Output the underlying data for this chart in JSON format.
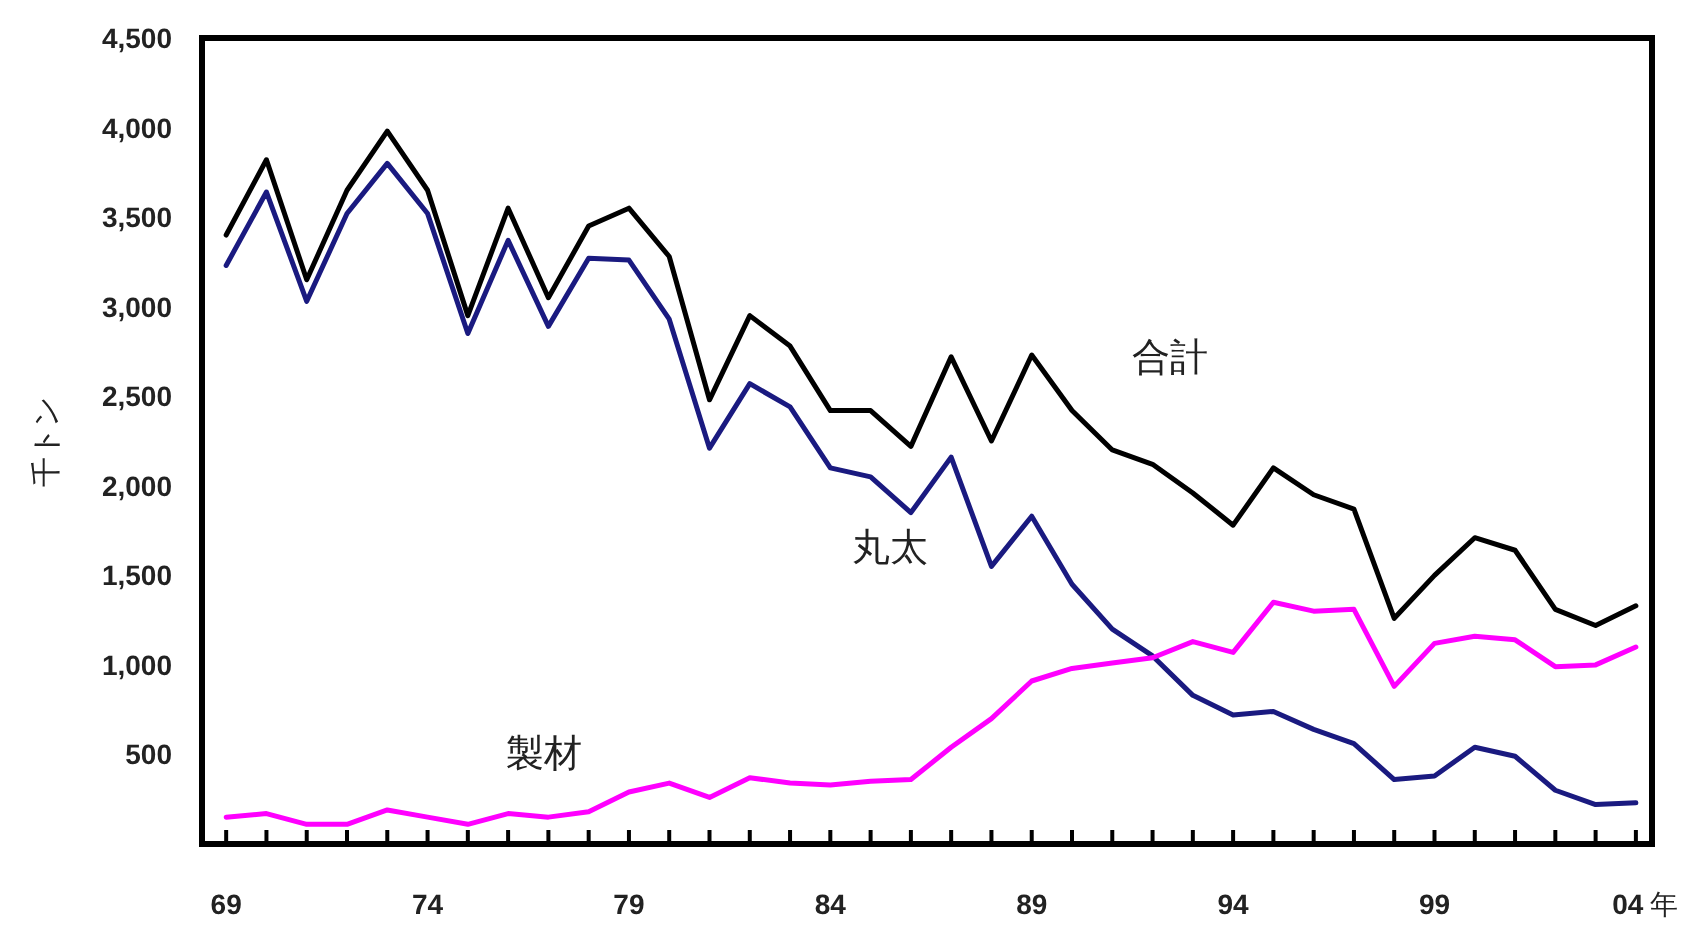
{
  "chart_data": {
    "type": "line",
    "ylabel": "千トン",
    "legend": false,
    "grid": false,
    "marker": "none",
    "line_style": "solid",
    "x": [
      1969,
      1970,
      1971,
      1972,
      1973,
      1974,
      1975,
      1976,
      1977,
      1978,
      1979,
      1980,
      1981,
      1982,
      1983,
      1984,
      1985,
      1986,
      1987,
      1988,
      1989,
      1990,
      1991,
      1992,
      1993,
      1994,
      1995,
      1996,
      1997,
      1998,
      1999,
      2000,
      2001,
      2002,
      2003,
      2004
    ],
    "xlim": [
      1968.4,
      2004.4
    ],
    "xticks": [
      {
        "value": 1969,
        "label": "69"
      },
      {
        "value": 1970,
        "label": null
      },
      {
        "value": 1971,
        "label": null
      },
      {
        "value": 1972,
        "label": null
      },
      {
        "value": 1973,
        "label": null
      },
      {
        "value": 1974,
        "label": "74"
      },
      {
        "value": 1975,
        "label": null
      },
      {
        "value": 1976,
        "label": null
      },
      {
        "value": 1977,
        "label": null
      },
      {
        "value": 1978,
        "label": null
      },
      {
        "value": 1979,
        "label": "79"
      },
      {
        "value": 1980,
        "label": null
      },
      {
        "value": 1981,
        "label": null
      },
      {
        "value": 1982,
        "label": null
      },
      {
        "value": 1983,
        "label": null
      },
      {
        "value": 1984,
        "label": "84"
      },
      {
        "value": 1985,
        "label": null
      },
      {
        "value": 1986,
        "label": null
      },
      {
        "value": 1987,
        "label": null
      },
      {
        "value": 1988,
        "label": null
      },
      {
        "value": 1989,
        "label": "89"
      },
      {
        "value": 1990,
        "label": null
      },
      {
        "value": 1991,
        "label": null
      },
      {
        "value": 1992,
        "label": null
      },
      {
        "value": 1993,
        "label": null
      },
      {
        "value": 1994,
        "label": "94"
      },
      {
        "value": 1995,
        "label": null
      },
      {
        "value": 1996,
        "label": null
      },
      {
        "value": 1997,
        "label": null
      },
      {
        "value": 1998,
        "label": null
      },
      {
        "value": 1999,
        "label": "99"
      },
      {
        "value": 2000,
        "label": null
      },
      {
        "value": 2001,
        "label": null
      },
      {
        "value": 2002,
        "label": null
      },
      {
        "value": 2003,
        "label": null
      },
      {
        "value": 2004,
        "label": "04"
      }
    ],
    "xlabel": "年",
    "ylim": [
      0,
      4500
    ],
    "yticks": [
      {
        "value": 500,
        "label": "500"
      },
      {
        "value": 1000,
        "label": "1,000"
      },
      {
        "value": 1500,
        "label": "1,500"
      },
      {
        "value": 2000,
        "label": "2,000"
      },
      {
        "value": 2500,
        "label": "2,500"
      },
      {
        "value": 3000,
        "label": "3,000"
      },
      {
        "value": 3500,
        "label": "3,500"
      },
      {
        "value": 4000,
        "label": "4,000"
      },
      {
        "value": 4500,
        "label": "4,500"
      }
    ],
    "series": [
      {
        "name": "合計",
        "color": "#000000",
        "values": [
          3400,
          3820,
          3150,
          3650,
          3980,
          3650,
          2950,
          3550,
          3050,
          3450,
          3550,
          3280,
          2480,
          2950,
          2780,
          2420,
          2420,
          2220,
          2720,
          2250,
          2730,
          2420,
          2200,
          2120,
          1960,
          1780,
          2100,
          1950,
          1870,
          1260,
          1500,
          1710,
          1640,
          1310,
          1220,
          1330
        ]
      },
      {
        "name": "丸太",
        "color": "#1a1a80",
        "values": [
          3230,
          3640,
          3030,
          3520,
          3800,
          3520,
          2850,
          3370,
          2890,
          3270,
          3260,
          2930,
          2210,
          2570,
          2440,
          2100,
          2050,
          1850,
          2160,
          1550,
          1830,
          1450,
          1200,
          1050,
          830,
          720,
          740,
          640,
          560,
          360,
          380,
          540,
          490,
          300,
          220,
          230
        ]
      },
      {
        "name": "製材",
        "color": "#ff00ff",
        "values": [
          150,
          170,
          110,
          110,
          190,
          150,
          110,
          170,
          150,
          180,
          290,
          340,
          260,
          370,
          340,
          330,
          350,
          360,
          540,
          700,
          910,
          980,
          1010,
          1040,
          1130,
          1070,
          1350,
          1300,
          1310,
          880,
          1120,
          1160,
          1140,
          990,
          1000,
          1100
        ]
      }
    ]
  }
}
